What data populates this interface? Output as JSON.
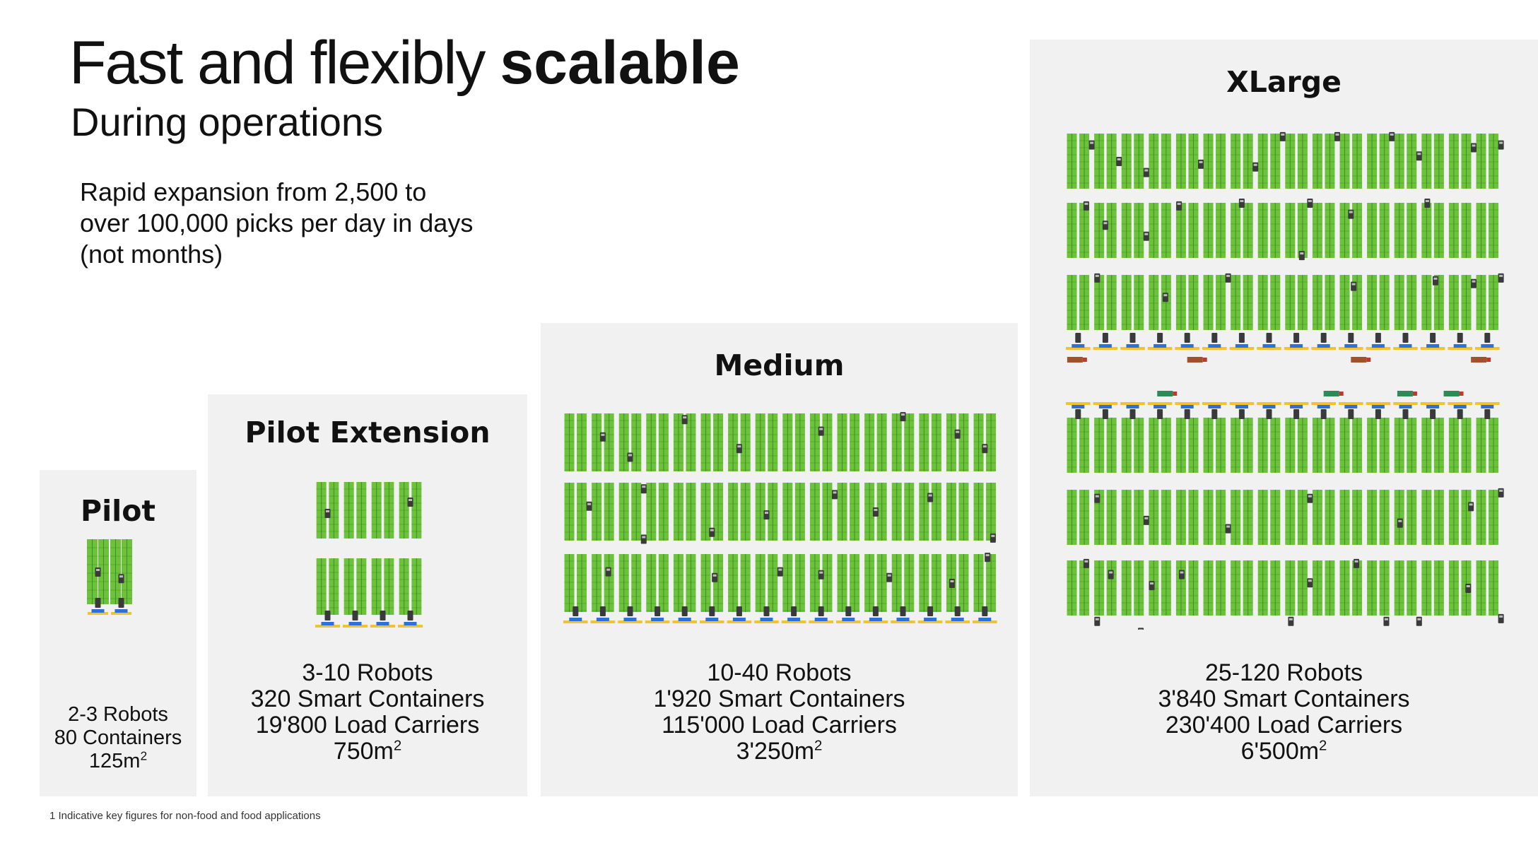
{
  "header": {
    "title_regular": "Fast and flexibly",
    "title_bold": "scalable",
    "subtitle": "During operations"
  },
  "intro": {
    "line1": "Rapid expansion from 2,500 to",
    "line2": "over 100,000 picks per day in days",
    "line3": "(not months)"
  },
  "tiers": {
    "pilot": {
      "title": "Pilot",
      "robots": "2-3 Robots",
      "containers": "80 Containers",
      "area": "125m",
      "area_sup": "2"
    },
    "pilot_extension": {
      "title": "Pilot Extension",
      "robots": "3-10 Robots",
      "containers": "320 Smart Containers",
      "carriers": "19'800 Load Carriers",
      "area": "750m",
      "area_sup": "2"
    },
    "medium": {
      "title": "Medium",
      "robots": "10-40 Robots",
      "containers": "1'920 Smart Containers",
      "carriers": "115'000 Load Carriers",
      "area": "3'250m",
      "area_sup": "2"
    },
    "xlarge": {
      "title": "XLarge",
      "robots": "25-120 Robots",
      "containers": "3'840 Smart Containers",
      "carriers": "230'400 Load Carriers",
      "area": "6'500m",
      "area_sup": "2"
    }
  },
  "footnote": "1 Indicative key figures for non-food and food applications",
  "colors": {
    "rack_green": "#6cc23a",
    "rack_stripe": "#3f8f23",
    "panel_bg": "#f1f1f1",
    "station_blue": "#2f6fd8",
    "station_yellow": "#f2c230",
    "robot_dark": "#3a3a3a"
  },
  "icons": {
    "robot": "robot-icon",
    "rack": "storage-rack",
    "station": "pick-station"
  }
}
